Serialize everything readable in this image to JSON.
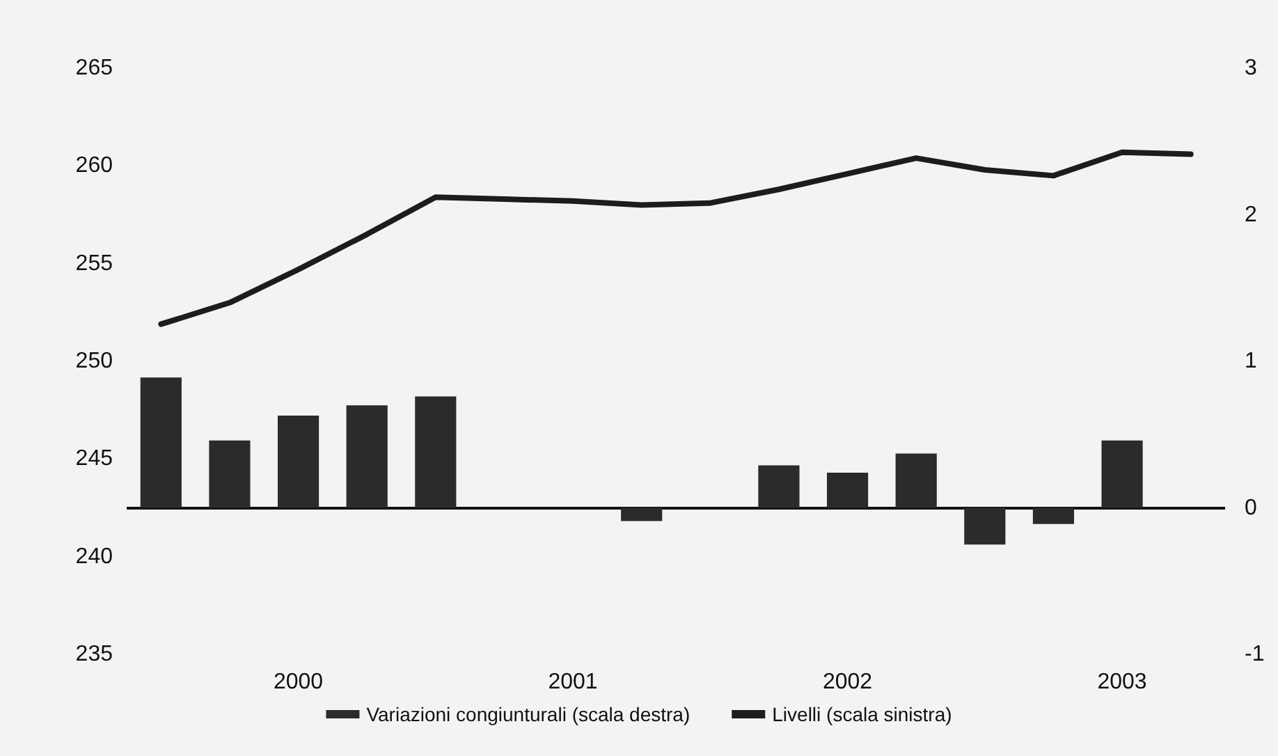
{
  "chart_data": {
    "type": "bar",
    "categories": [
      null,
      null,
      "2000",
      null,
      null,
      null,
      "2001",
      null,
      null,
      null,
      "2002",
      null,
      null,
      null,
      "2003",
      null
    ],
    "series": [
      {
        "name": "Variazioni congiunturali (scala destra)",
        "axis": "y2",
        "color": "#2b2b2b",
        "values": [
          0.89,
          0.46,
          0.63,
          0.7,
          0.76,
          0,
          0,
          -0.09,
          0,
          0.29,
          0.24,
          0.37,
          -0.25,
          -0.11,
          0.46,
          0
        ]
      },
      {
        "name": "Livelli (scala sinistra)",
        "type": "line",
        "color": "#1c1c1c",
        "values": [
          251.9,
          253.0,
          254.7,
          256.5,
          258.4,
          258.3,
          258.2,
          258.0,
          258.1,
          258.8,
          259.6,
          260.4,
          259.8,
          259.5,
          260.7,
          260.6
        ]
      }
    ],
    "ylim": [
      235,
      265
    ],
    "yticks": [
      235,
      240,
      245,
      250,
      255,
      260,
      265
    ],
    "y2lim": [
      -1,
      3
    ],
    "y2ticks": [
      -1,
      0,
      1,
      2,
      3
    ],
    "ref_lines": [
      {
        "axis": "y2",
        "value": 0,
        "color": "#111111"
      }
    ],
    "grid": false,
    "legend": "bottom",
    "marker": "none",
    "line_style": "solid"
  }
}
